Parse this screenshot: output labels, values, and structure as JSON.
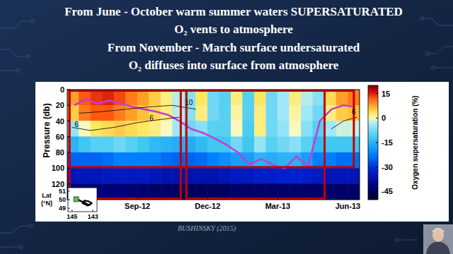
{
  "slide": {
    "title_lines": [
      "From June - October warm summer waters SUPERSATURATED",
      "O₂ vents to atmosphere",
      "From November - March surface undersaturated",
      "O₂ diffuses into surface from atmosphere"
    ],
    "citation": "BUSHINSKY (2015)"
  },
  "chart_data": {
    "type": "heatmap",
    "ylabel": "Pressure (db)",
    "xlim": [
      0,
      12.5
    ],
    "xticks": [
      {
        "value": 3,
        "label": "Sep-12"
      },
      {
        "value": 6,
        "label": "Dec-12"
      },
      {
        "value": 9,
        "label": "Mar-13"
      },
      {
        "value": 12,
        "label": "Jun-13"
      }
    ],
    "ylim": [
      0,
      140
    ],
    "yticks": [
      0,
      20,
      40,
      60,
      80,
      100,
      120
    ],
    "x": [
      0.25,
      0.75,
      1.25,
      1.75,
      2.25,
      2.75,
      3.25,
      3.75,
      4.25,
      4.75,
      5.25,
      5.75,
      6.25,
      6.75,
      7.25,
      7.75,
      8.25,
      8.75,
      9.25,
      9.75,
      10.25,
      10.75,
      11.25,
      11.75,
      12.25
    ],
    "y": [
      10,
      30,
      50,
      70,
      90,
      110,
      130
    ],
    "cells": [
      [
        8,
        12,
        14,
        15,
        13,
        10,
        8,
        5,
        2,
        -3,
        -6,
        3,
        -8,
        -10,
        2,
        -10,
        3,
        -8,
        -4,
        2,
        -3,
        -6,
        4,
        8,
        10
      ],
      [
        5,
        10,
        12,
        12,
        10,
        8,
        6,
        4,
        2,
        -3,
        -6,
        2,
        -8,
        -10,
        1,
        -10,
        2,
        -8,
        -4,
        1,
        -4,
        -8,
        2,
        5,
        6
      ],
      [
        -5,
        0,
        3,
        4,
        5,
        4,
        3,
        2,
        0,
        -4,
        -8,
        -6,
        -10,
        -10,
        0,
        -11,
        2,
        -8,
        -5,
        0,
        -6,
        -10,
        -4,
        -2,
        -2
      ],
      [
        -15,
        -12,
        -10,
        -10,
        -8,
        -10,
        -12,
        -14,
        -15,
        -16,
        -16,
        -14,
        -12,
        -12,
        -8,
        -12,
        -5,
        -10,
        -8,
        -6,
        -10,
        -14,
        -12,
        -12,
        -12
      ],
      [
        -25,
        -25,
        -25,
        -24,
        -22,
        -22,
        -22,
        -22,
        -24,
        -25,
        -25,
        -24,
        -22,
        -20,
        -18,
        -18,
        -15,
        -16,
        -15,
        -15,
        -18,
        -22,
        -22,
        -24,
        -24
      ],
      [
        -35,
        -35,
        -35,
        -34,
        -34,
        -34,
        -34,
        -35,
        -36,
        -36,
        -36,
        -36,
        -36,
        -35,
        -34,
        -34,
        -33,
        -33,
        -32,
        -32,
        -33,
        -34,
        -35,
        -35,
        -35
      ],
      [
        -42,
        -42,
        -42,
        -42,
        -42,
        -43,
        -43,
        -44,
        -44,
        -45,
        -45,
        -45,
        -45,
        -45,
        -44,
        -44,
        -44,
        -44,
        -44,
        -44,
        -44,
        -44,
        -44,
        -44,
        -44
      ]
    ],
    "colorbar": {
      "label": "Oxygen supersaturation (%)",
      "lim": [
        -50,
        20
      ],
      "ticks": [
        15,
        0,
        -15,
        -30,
        -45
      ]
    },
    "series": [
      {
        "type": "line",
        "color": "#c23ed4",
        "x": [
          0.3,
          0.8,
          1.3,
          1.8,
          2.3,
          2.8,
          3.3,
          3.8,
          4.3,
          4.8,
          5.3,
          5.8,
          6.3,
          6.8,
          7.3,
          7.8,
          8.3,
          8.8,
          9.3,
          9.8,
          10.3,
          10.8,
          11.3,
          11.8,
          12.3
        ],
        "values": [
          20,
          12,
          18,
          14,
          18,
          22,
          25,
          28,
          32,
          40,
          50,
          55,
          62,
          70,
          80,
          95,
          88,
          96,
          100,
          85,
          98,
          40,
          25,
          20,
          22
        ]
      },
      {
        "type": "line",
        "color": "#000000",
        "x": [
          0.2,
          1,
          2,
          3,
          4,
          4.8
        ],
        "values": [
          48,
          52,
          48,
          42,
          38,
          35
        ]
      },
      {
        "type": "line",
        "color": "#000000",
        "x": [
          0.5,
          1.5,
          2.5,
          3.5,
          4.5,
          5.5
        ],
        "values": [
          30,
          28,
          25,
          22,
          20,
          25
        ]
      },
      {
        "type": "line",
        "color": "#000000",
        "x": [
          11.3,
          11.8,
          12.4
        ],
        "values": [
          50,
          40,
          35
        ]
      }
    ],
    "annotations": [
      {
        "text": "6",
        "x": 0.4,
        "y": 44
      },
      {
        "text": "6",
        "x": 3.6,
        "y": 36
      },
      {
        "text": "10",
        "x": 5.2,
        "y": 16
      },
      {
        "text": "6",
        "x": 12.25,
        "y": 28
      }
    ],
    "regions": [
      {
        "x": [
          0.05,
          4.9
        ],
        "y": [
          0,
          140
        ],
        "color": "#c00000"
      },
      {
        "x": [
          5.05,
          11.05
        ],
        "y": [
          0,
          140
        ],
        "color": "#c00000"
      },
      {
        "x": [
          0.05,
          12.3
        ],
        "y": [
          0,
          100
        ],
        "color": "#c00000"
      }
    ],
    "inset": {
      "ylabel_lines": [
        "Lat",
        "(°N)"
      ],
      "xlim": [
        145.4,
        142.6
      ],
      "xticks": [
        145,
        143
      ],
      "ylim": [
        48.6,
        51.4
      ],
      "yticks": [
        51,
        50,
        49
      ],
      "lon": [
        144.7,
        144.4,
        144.1,
        143.8,
        143.6,
        143.3,
        143.1,
        143.4,
        143.8,
        144.0,
        143.5,
        143.2
      ],
      "lat": [
        50.1,
        50.0,
        49.8,
        49.7,
        49.5,
        49.4,
        49.6,
        49.8,
        49.9,
        49.6,
        49.3,
        49.5
      ],
      "color": "#000000",
      "start": {
        "lon": 144.6,
        "lat": 50.05,
        "color": "#5cc24a"
      }
    }
  }
}
